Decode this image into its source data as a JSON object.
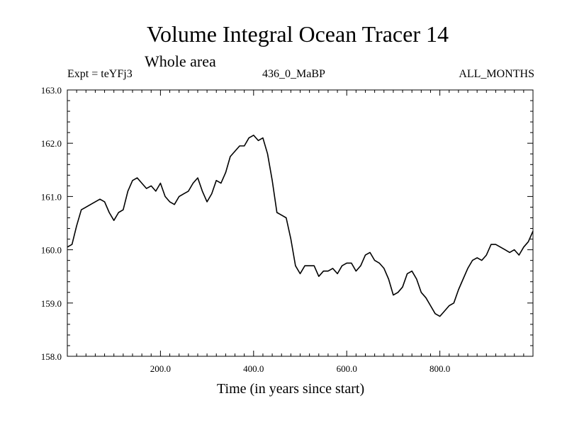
{
  "chart_data": {
    "type": "line",
    "title": "Volume Integral Ocean Tracer 14",
    "subtitle": "Whole area",
    "header_left": "Expt = teYFj3",
    "header_center": "436_0_MaBP",
    "header_right": "ALL_MONTHS",
    "xlabel": "Time (in years since start)",
    "ylabel": "",
    "xlim": [
      0,
      1000
    ],
    "ylim": [
      158.0,
      163.0
    ],
    "x_ticks": [
      200,
      400,
      600,
      800
    ],
    "x_tick_labels": [
      "200.0",
      "400.0",
      "600.0",
      "800.0"
    ],
    "y_ticks": [
      158,
      159,
      160,
      161,
      162,
      163
    ],
    "y_tick_labels": [
      "158.0",
      "159.0",
      "160.0",
      "161.0",
      "162.0",
      "163.0"
    ],
    "grid": false,
    "series": [
      {
        "name": "Tracer 14",
        "x": [
          0,
          10,
          20,
          30,
          40,
          50,
          60,
          70,
          80,
          90,
          100,
          110,
          120,
          130,
          140,
          150,
          160,
          170,
          180,
          190,
          200,
          210,
          220,
          230,
          240,
          250,
          260,
          270,
          280,
          290,
          300,
          310,
          320,
          330,
          340,
          350,
          360,
          370,
          380,
          390,
          400,
          410,
          420,
          430,
          440,
          450,
          460,
          470,
          480,
          490,
          500,
          510,
          520,
          530,
          540,
          550,
          560,
          570,
          580,
          590,
          600,
          610,
          620,
          630,
          640,
          650,
          660,
          670,
          680,
          690,
          700,
          710,
          720,
          730,
          740,
          750,
          760,
          770,
          780,
          790,
          800,
          810,
          820,
          830,
          840,
          850,
          860,
          870,
          880,
          890,
          900,
          910,
          920,
          930,
          940,
          950,
          960,
          970,
          980,
          990,
          1000
        ],
        "values": [
          160.05,
          160.1,
          160.45,
          160.75,
          160.8,
          160.85,
          160.9,
          160.95,
          160.9,
          160.7,
          160.55,
          160.7,
          160.75,
          161.1,
          161.3,
          161.35,
          161.25,
          161.15,
          161.2,
          161.1,
          161.25,
          161.0,
          160.9,
          160.85,
          161.0,
          161.05,
          161.1,
          161.25,
          161.35,
          161.1,
          160.9,
          161.05,
          161.3,
          161.25,
          161.45,
          161.75,
          161.85,
          161.95,
          161.95,
          162.1,
          162.15,
          162.05,
          162.1,
          161.8,
          161.3,
          160.7,
          160.65,
          160.6,
          160.2,
          159.7,
          159.55,
          159.7,
          159.7,
          159.7,
          159.5,
          159.6,
          159.6,
          159.65,
          159.55,
          159.7,
          159.75,
          159.75,
          159.6,
          159.7,
          159.9,
          159.95,
          159.8,
          159.75,
          159.65,
          159.45,
          159.15,
          159.2,
          159.3,
          159.55,
          159.6,
          159.45,
          159.2,
          159.1,
          158.95,
          158.8,
          158.75,
          158.85,
          158.95,
          159.0,
          159.25,
          159.45,
          159.65,
          159.8,
          159.85,
          159.8,
          159.9,
          160.1,
          160.1,
          160.05,
          160.0,
          159.95,
          160.0,
          159.9,
          160.05,
          160.15,
          160.35
        ]
      }
    ]
  }
}
